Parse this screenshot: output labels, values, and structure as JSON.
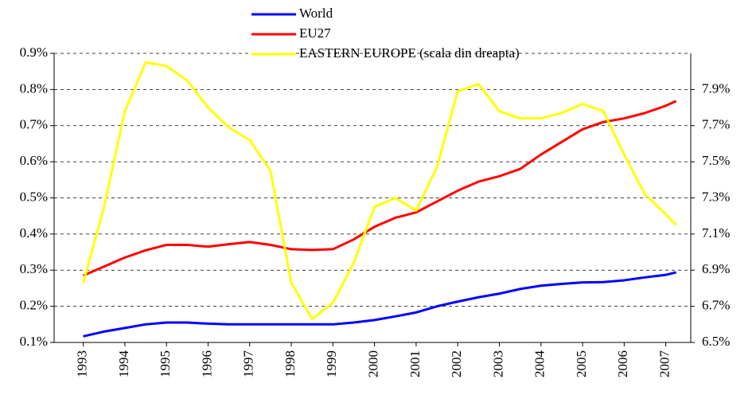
{
  "chart_data": {
    "type": "line",
    "x": [
      1993,
      1993.5,
      1994,
      1994.5,
      1995,
      1995.5,
      1996,
      1996.5,
      1997,
      1997.5,
      1998,
      1998.5,
      1999,
      1999.5,
      2000,
      2000.5,
      2001,
      2001.5,
      2002,
      2002.5,
      2003,
      2003.5,
      2004,
      2004.5,
      2005,
      2005.5,
      2006,
      2006.5,
      2007,
      2007.25
    ],
    "xlim": [
      1992.3,
      2007.6
    ],
    "xticks": [
      1993,
      1994,
      1995,
      1996,
      1997,
      1998,
      1999,
      2000,
      2001,
      2002,
      2003,
      2004,
      2005,
      2006,
      2007
    ],
    "ylim": [
      0.1,
      0.9
    ],
    "yticks": [
      {
        "value": 0.1,
        "label": "0.1%"
      },
      {
        "value": 0.2,
        "label": "0.2%"
      },
      {
        "value": 0.3,
        "label": "0.3%"
      },
      {
        "value": 0.4,
        "label": "0.4%"
      },
      {
        "value": 0.5,
        "label": "0.5%"
      },
      {
        "value": 0.6,
        "label": "0.6%"
      },
      {
        "value": 0.7,
        "label": "0.7%"
      },
      {
        "value": 0.8,
        "label": "0.8%"
      },
      {
        "value": 0.9,
        "label": "0.9%"
      }
    ],
    "y2lim": [
      6.5,
      8.1
    ],
    "y2ticks": [
      {
        "value": 6.5,
        "label": "6.5%"
      },
      {
        "value": 6.7,
        "label": "6.7%"
      },
      {
        "value": 6.9,
        "label": "6.9%"
      },
      {
        "value": 7.1,
        "label": "7.1%"
      },
      {
        "value": 7.3,
        "label": "7.3%"
      },
      {
        "value": 7.5,
        "label": "7.5%"
      },
      {
        "value": 7.7,
        "label": "7.7%"
      },
      {
        "value": 7.9,
        "label": "7.9%"
      }
    ],
    "grid": true,
    "legend": "top",
    "series": [
      {
        "name": "World",
        "color": "#0000ff",
        "values": [
          0.117,
          0.13,
          0.14,
          0.15,
          0.155,
          0.155,
          0.152,
          0.15,
          0.15,
          0.15,
          0.15,
          0.15,
          0.15,
          0.155,
          0.162,
          0.172,
          0.183,
          0.2,
          0.213,
          0.225,
          0.235,
          0.248,
          0.257,
          0.262,
          0.266,
          0.267,
          0.272,
          0.28,
          0.287,
          0.294
        ]
      },
      {
        "name": "EU27",
        "color": "#ff0000",
        "values": [
          0.285,
          0.31,
          0.335,
          0.355,
          0.37,
          0.37,
          0.365,
          0.372,
          0.378,
          0.37,
          0.358,
          0.356,
          0.358,
          0.385,
          0.42,
          0.445,
          0.46,
          0.49,
          0.52,
          0.545,
          0.56,
          0.58,
          0.62,
          0.655,
          0.69,
          0.71,
          0.72,
          0.735,
          0.755,
          0.768
        ]
      },
      {
        "name": "EASTERN EUROPE (scala din dreapta)",
        "color": "#ffff00",
        "axis": "y2",
        "values": [
          6.83,
          7.25,
          7.78,
          8.05,
          8.03,
          7.95,
          7.8,
          7.69,
          7.62,
          7.45,
          6.83,
          6.63,
          6.72,
          6.94,
          7.25,
          7.3,
          7.23,
          7.47,
          7.89,
          7.93,
          7.78,
          7.74,
          7.74,
          7.77,
          7.82,
          7.78,
          7.54,
          7.32,
          7.21,
          7.15
        ]
      }
    ]
  }
}
